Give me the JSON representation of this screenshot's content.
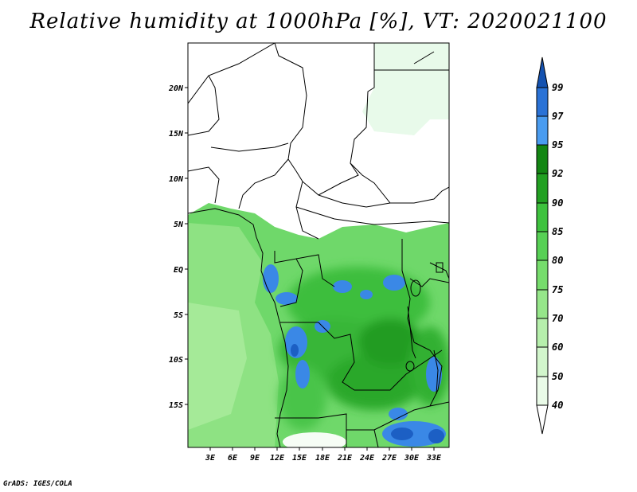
{
  "title": "Relative humidity at 1000hPa [%], VT: 2020021100",
  "footer": "GrADS: IGES/COLA",
  "map": {
    "lat_labels": [
      "20N",
      "15N",
      "10N",
      "5N",
      "EQ",
      "5S",
      "10S",
      "15S"
    ],
    "lon_labels": [
      "3E",
      "6E",
      "9E",
      "12E",
      "15E",
      "18E",
      "21E",
      "24E",
      "27E",
      "30E",
      "33E"
    ]
  },
  "colorbar": {
    "levels": [
      "40",
      "50",
      "60",
      "70",
      "75",
      "80",
      "85",
      "90",
      "92",
      "95",
      "97",
      "99"
    ],
    "colors": [
      "#ffffff",
      "#eafbe8",
      "#d2f6cc",
      "#b6efac",
      "#96e68a",
      "#76dc6c",
      "#57d055",
      "#3ec23e",
      "#22a022",
      "#138613",
      "#4a9cf0",
      "#2a72d6",
      "#1452b0"
    ]
  }
}
